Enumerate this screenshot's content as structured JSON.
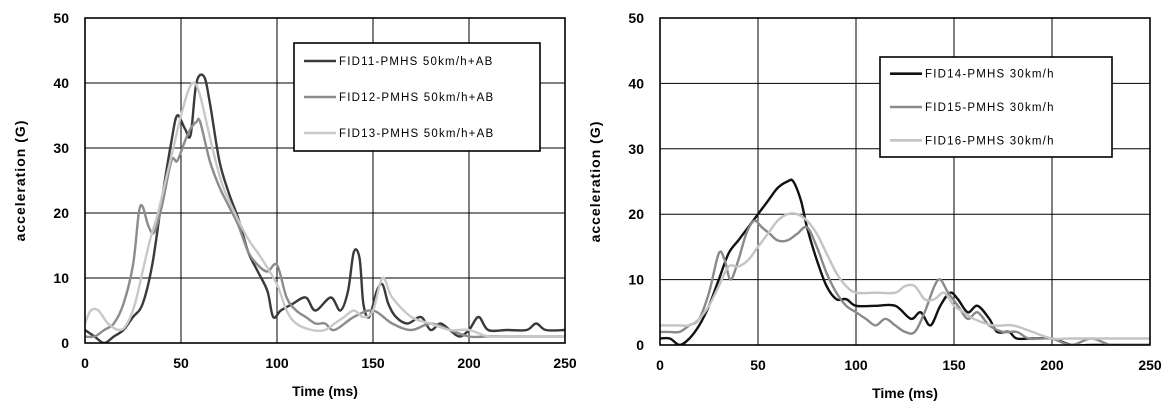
{
  "chart_data": [
    {
      "type": "line",
      "xlabel": "Time (ms)",
      "ylabel": "acceleration (G)",
      "xlim": [
        0,
        250
      ],
      "ylim": [
        0,
        50
      ],
      "xticks": [
        0,
        50,
        100,
        150,
        200,
        250
      ],
      "yticks": [
        0,
        10,
        20,
        30,
        40,
        50
      ],
      "grid": true,
      "legend_position": "top-right",
      "series": [
        {
          "name": "FID11-PMHS 50km/h+AB",
          "color": "#3a3a3a",
          "x": [
            0,
            5,
            10,
            15,
            20,
            25,
            30,
            35,
            40,
            45,
            48,
            52,
            55,
            58,
            62,
            65,
            70,
            75,
            80,
            85,
            90,
            95,
            98,
            102,
            108,
            115,
            120,
            128,
            133,
            137,
            140,
            143,
            145,
            148,
            152,
            155,
            158,
            162,
            168,
            175,
            180,
            185,
            190,
            195,
            200,
            205,
            210,
            220,
            230,
            235,
            240,
            250
          ],
          "y": [
            2,
            1,
            0,
            1,
            2,
            4,
            6,
            12,
            22,
            31,
            35,
            33,
            32,
            40,
            41,
            37,
            28,
            23,
            19,
            14,
            11,
            8,
            4,
            5,
            6,
            7,
            5,
            7,
            5,
            8,
            14,
            13,
            6,
            4,
            8,
            9,
            6,
            4,
            3,
            4,
            2,
            3,
            2,
            1,
            2,
            4,
            2,
            2,
            2,
            3,
            2,
            2
          ]
        },
        {
          "name": "FID12-PMHS 50km/h+AB",
          "color": "#8c8c8c",
          "x": [
            0,
            5,
            10,
            15,
            20,
            25,
            28,
            30,
            33,
            36,
            40,
            45,
            48,
            52,
            55,
            58,
            60,
            65,
            70,
            75,
            80,
            85,
            90,
            95,
            100,
            105,
            110,
            115,
            120,
            125,
            130,
            140,
            150,
            160,
            170,
            180,
            190,
            200,
            210,
            220,
            230,
            240,
            250
          ],
          "y": [
            1,
            1,
            2,
            3,
            6,
            12,
            20,
            21,
            18,
            17,
            21,
            28,
            28,
            31,
            33,
            34,
            34,
            28,
            24,
            21,
            18,
            14,
            12,
            11,
            12,
            7,
            5,
            4,
            3,
            3,
            2,
            4,
            5,
            3,
            2,
            3,
            2,
            1,
            1,
            1,
            1,
            1,
            1
          ]
        },
        {
          "name": "FID13-PMHS 50km/h+AB",
          "color": "#c8c8c8",
          "x": [
            0,
            3,
            7,
            12,
            18,
            22,
            26,
            30,
            34,
            38,
            42,
            46,
            50,
            54,
            57,
            60,
            64,
            68,
            72,
            78,
            85,
            92,
            100,
            105,
            110,
            118,
            125,
            130,
            135,
            140,
            145,
            150,
            155,
            160,
            170,
            180,
            190,
            200,
            210,
            220,
            230,
            240,
            250
          ],
          "y": [
            3,
            5,
            5,
            3,
            2,
            3,
            6,
            11,
            16,
            20,
            25,
            30,
            35,
            39,
            40,
            38,
            33,
            28,
            24,
            20,
            16,
            13,
            9,
            5,
            3,
            2,
            2,
            3,
            4,
            5,
            4,
            5,
            10,
            7,
            4,
            3,
            2,
            2,
            1,
            1,
            1,
            1,
            1
          ]
        }
      ]
    },
    {
      "type": "line",
      "xlabel": "Time (ms)",
      "ylabel": "acceleration (G)",
      "xlim": [
        0,
        250
      ],
      "ylim": [
        0,
        50
      ],
      "xticks": [
        0,
        50,
        100,
        150,
        200,
        250
      ],
      "yticks": [
        0,
        10,
        20,
        30,
        40,
        50
      ],
      "grid": true,
      "legend_position": "top-right",
      "series": [
        {
          "name": "FID14-PMHS 30km/h",
          "color": "#111111",
          "x": [
            0,
            5,
            10,
            15,
            20,
            25,
            30,
            35,
            40,
            45,
            50,
            55,
            60,
            65,
            68,
            72,
            75,
            80,
            85,
            90,
            95,
            100,
            110,
            120,
            128,
            133,
            138,
            143,
            148,
            152,
            157,
            162,
            168,
            172,
            178,
            182,
            190,
            200,
            210,
            220,
            230,
            240,
            250
          ],
          "y": [
            1,
            1,
            0,
            1,
            3,
            6,
            10,
            14,
            16,
            18,
            20,
            22,
            24,
            25,
            25,
            22,
            18,
            13,
            9,
            7,
            7,
            6,
            6,
            6,
            4,
            5,
            3,
            6,
            8,
            7,
            5,
            6,
            4,
            2,
            2,
            1,
            1,
            1,
            0,
            0,
            0,
            0,
            0
          ]
        },
        {
          "name": "FID15-PMHS 30km/h",
          "color": "#8a8a8a",
          "x": [
            0,
            5,
            10,
            15,
            20,
            25,
            30,
            33,
            36,
            40,
            44,
            48,
            52,
            56,
            60,
            65,
            70,
            75,
            80,
            85,
            90,
            95,
            100,
            105,
            110,
            115,
            120,
            125,
            130,
            135,
            140,
            143,
            147,
            152,
            157,
            162,
            168,
            175,
            182,
            188,
            195,
            200,
            210,
            220,
            230,
            240,
            250
          ],
          "y": [
            2,
            2,
            2,
            3,
            4,
            8,
            14,
            13,
            10,
            13,
            17,
            19,
            18,
            17,
            16,
            16,
            17,
            18,
            15,
            11,
            8,
            6,
            5,
            4,
            3,
            4,
            3,
            2,
            2,
            5,
            9,
            10,
            8,
            6,
            4,
            5,
            3,
            2,
            2,
            1,
            1,
            1,
            0,
            1,
            0,
            0,
            0
          ]
        },
        {
          "name": "FID16-PMHS 30km/h",
          "color": "#c4c4c4",
          "x": [
            0,
            5,
            10,
            15,
            20,
            25,
            30,
            35,
            40,
            45,
            50,
            55,
            60,
            65,
            70,
            75,
            80,
            85,
            90,
            95,
            100,
            110,
            120,
            125,
            130,
            135,
            140,
            145,
            150,
            155,
            160,
            170,
            180,
            190,
            200,
            210,
            220,
            230,
            240,
            250
          ],
          "y": [
            3,
            3,
            3,
            3,
            4,
            6,
            9,
            12,
            12,
            13,
            15,
            17,
            19,
            20,
            20,
            19,
            17,
            14,
            11,
            9,
            8,
            8,
            8,
            9,
            9,
            7,
            7,
            8,
            6,
            5,
            4,
            3,
            3,
            2,
            1,
            1,
            1,
            1,
            1,
            1
          ]
        }
      ]
    }
  ]
}
